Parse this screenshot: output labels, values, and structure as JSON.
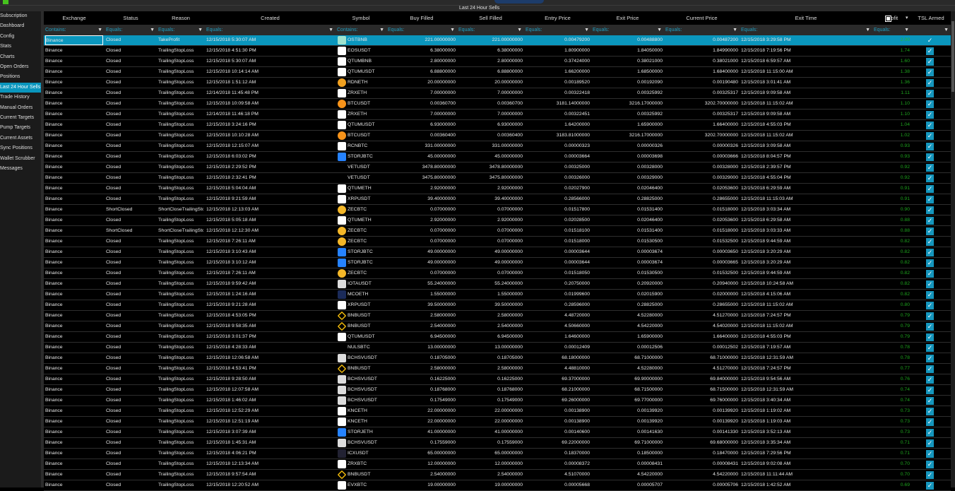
{
  "window": {
    "title": "Last 24 Hour Sells"
  },
  "sidebar": {
    "items": [
      "Subscription",
      "Dashboard",
      "Config",
      "Stats",
      "Charts",
      "Open Orders",
      "Positions",
      "Last 24 Hour Sells",
      "Trade History",
      "Manual Orders",
      "Current Targets",
      "Pump Targets",
      "Current Assets",
      "Sync Positions",
      "Wallet Scrubber",
      "Messages"
    ],
    "active": 7
  },
  "colors": {
    "accent": "#0a96bd",
    "profit": "#1ea51e",
    "checkbox": "#1596bd"
  },
  "columns": [
    "Exchange",
    "Status",
    "Reason",
    "Created",
    "Symbol",
    "Buy Filled",
    "Sell Filled",
    "Entry Price",
    "Exit Price",
    "Current Price",
    "Exit Time",
    "Profit",
    "TSL Armed"
  ],
  "filters": [
    "Contains:",
    "Equals:",
    "Equals:",
    "Equals:",
    "Contains:",
    "Equals:",
    "Equals:",
    "Equals:",
    "Equals:",
    "Equals:",
    "Equals:",
    "Equals:"
  ],
  "sort": {
    "column": "Profit",
    "direction": "descending"
  },
  "rows": [
    [
      "Binance",
      "Closed",
      "TakeProfit",
      "12/15/2018 5:30:07 AM",
      "OSTBNB",
      "221.00000000",
      "221.00000000",
      "0.00479200",
      "0.00488800",
      "0.00487200",
      "12/15/2018 3:29:58 PM",
      "2.00",
      true
    ],
    [
      "Binance",
      "Closed",
      "TrailingStopLoss",
      "12/15/2018 4:51:30 PM",
      "EOSUSDT",
      "6.38000000",
      "6.38000000",
      "1.80900000",
      "1.84050000",
      "1.84990000",
      "12/15/2018 7:19:56 PM",
      "1.74",
      true
    ],
    [
      "Binance",
      "Closed",
      "TrailingStopLoss",
      "12/15/2018 5:30:07 AM",
      "QTUMBNB",
      "2.80000000",
      "2.80000000",
      "0.37424000",
      "0.38021000",
      "0.38021000",
      "12/15/2018 6:59:57 AM",
      "1.60",
      true
    ],
    [
      "Binance",
      "Closed",
      "TrailingStopLoss",
      "12/15/2018 10:14:14 AM",
      "QTUMUSDT",
      "6.88800000",
      "6.88800000",
      "1.66200000",
      "1.68500000",
      "1.68400000",
      "12/15/2018 11:15:00 AM",
      "1.38",
      true
    ],
    [
      "Binance",
      "Closed",
      "TrailingStopLoss",
      "12/15/2018 1:51:12 AM",
      "RDNETH",
      "20.00000000",
      "20.00000000",
      "0.00189520",
      "0.00192090",
      "0.00190480",
      "12/15/2018 3:01:41 AM",
      "1.36",
      true
    ],
    [
      "Binance",
      "Closed",
      "TrailingStopLoss",
      "12/14/2018 11:45:48 PM",
      "ZRXETH",
      "7.00000000",
      "7.00000000",
      "0.00322418",
      "0.00325992",
      "0.00325317",
      "12/15/2018 9:09:58 AM",
      "1.11",
      true
    ],
    [
      "Binance",
      "Closed",
      "TrailingStopLoss",
      "12/15/2018 10:09:58 AM",
      "BTCUSDT",
      "0.00360700",
      "0.00360700",
      "3181.14000000",
      "3216.17000000",
      "3202.70000000",
      "12/15/2018 11:15:02 AM",
      "1.10",
      true
    ],
    [
      "Binance",
      "Closed",
      "TrailingStopLoss",
      "12/14/2018 11:46:18 PM",
      "ZRXETH",
      "7.00000000",
      "7.00000000",
      "0.00322451",
      "0.00325992",
      "0.00325317",
      "12/15/2018 9:09:58 AM",
      "1.10",
      true
    ],
    [
      "Binance",
      "Closed",
      "TrailingStopLoss",
      "12/15/2018 3:24:16 PM",
      "QTUMUSDT",
      "6.93000000",
      "6.93000000",
      "1.64200000",
      "1.65900000",
      "1.66400000",
      "12/15/2018 4:55:03 PM",
      "1.04",
      true
    ],
    [
      "Binance",
      "Closed",
      "TrailingStopLoss",
      "12/15/2018 10:10:28 AM",
      "BTCUSDT",
      "0.00360400",
      "0.00360400",
      "3183.81000000",
      "3216.17000000",
      "3202.70000000",
      "12/15/2018 11:15:02 AM",
      "1.02",
      true
    ],
    [
      "Binance",
      "Closed",
      "TrailingStopLoss",
      "12/15/2018 12:15:07 AM",
      "RCNBTC",
      "331.00000000",
      "331.00000000",
      "0.00000323",
      "0.00000326",
      "0.00000326",
      "12/15/2018 3:09:58 AM",
      "0.93",
      true
    ],
    [
      "Binance",
      "Closed",
      "TrailingStopLoss",
      "12/15/2018 6:03:02 PM",
      "STORJBTC",
      "45.00000000",
      "45.00000000",
      "0.00003664",
      "0.00003698",
      "0.00003666",
      "12/15/2018 8:04:57 PM",
      "0.93",
      true
    ],
    [
      "Binance",
      "Closed",
      "TrailingStopLoss",
      "12/15/2018 2:29:52 PM",
      "VETUSDT",
      "3478.80000000",
      "3478.80000000",
      "0.00325000",
      "0.00328000",
      "0.00328000",
      "12/15/2018 2:39:57 PM",
      "0.92",
      true
    ],
    [
      "Binance",
      "Closed",
      "TrailingStopLoss",
      "12/15/2018 2:32:41 PM",
      "VETUSDT",
      "3475.80000000",
      "3475.80000000",
      "0.00326000",
      "0.00329000",
      "0.00329000",
      "12/15/2018 4:55:04 PM",
      "0.92",
      true
    ],
    [
      "Binance",
      "Closed",
      "TrailingStopLoss",
      "12/15/2018 5:04:04 AM",
      "QTUMETH",
      "2.92000000",
      "2.92000000",
      "0.02027900",
      "0.02046400",
      "0.02053600",
      "12/15/2018 6:29:59 AM",
      "0.91",
      true
    ],
    [
      "Binance",
      "Closed",
      "TrailingStopLoss",
      "12/15/2018 9:21:59 AM",
      "XRPUSDT",
      "39.40000000",
      "39.40000000",
      "0.28566000",
      "0.28825000",
      "0.28655000",
      "12/15/2018 11:15:03 AM",
      "0.91",
      true
    ],
    [
      "Binance",
      "ShortClosed",
      "ShortCloseTrailingStop",
      "12/15/2018 12:13:03 AM",
      "ZECBTC",
      "0.07000000",
      "0.07000000",
      "0.01517800",
      "0.01531400",
      "0.01518000",
      "12/15/2018 3:03:34 AM",
      "0.90",
      true
    ],
    [
      "Binance",
      "Closed",
      "TrailingStopLoss",
      "12/15/2018 5:05:18 AM",
      "QTUMETH",
      "2.92000000",
      "2.92000000",
      "0.02028500",
      "0.02046400",
      "0.02053600",
      "12/15/2018 6:29:58 AM",
      "0.88",
      true
    ],
    [
      "Binance",
      "ShortClosed",
      "ShortCloseTrailingStop",
      "12/15/2018 12:12:30 AM",
      "ZECBTC",
      "0.07000000",
      "0.07000000",
      "0.01518100",
      "0.01531400",
      "0.01518000",
      "12/15/2018 3:03:33 AM",
      "0.88",
      true
    ],
    [
      "Binance",
      "Closed",
      "TrailingStopLoss",
      "12/15/2018 7:26:11 AM",
      "ZECBTC",
      "0.07000000",
      "0.07000000",
      "0.01518000",
      "0.01530500",
      "0.01532500",
      "12/15/2018 9:44:59 AM",
      "0.82",
      true
    ],
    [
      "Binance",
      "Closed",
      "TrailingStopLoss",
      "12/15/2018 3:10:43 AM",
      "STORJBTC",
      "49.00000000",
      "49.00000000",
      "0.00003644",
      "0.00003674",
      "0.00003650",
      "12/15/2018 3:20:29 AM",
      "0.82",
      true
    ],
    [
      "Binance",
      "Closed",
      "TrailingStopLoss",
      "12/15/2018 3:10:12 AM",
      "STORJBTC",
      "49.00000000",
      "49.00000000",
      "0.00003644",
      "0.00003674",
      "0.00003665",
      "12/15/2018 3:20:29 AM",
      "0.82",
      true
    ],
    [
      "Binance",
      "Closed",
      "TrailingStopLoss",
      "12/15/2018 7:26:11 AM",
      "ZECBTC",
      "0.07000000",
      "0.07000000",
      "0.01518050",
      "0.01530500",
      "0.01532500",
      "12/15/2018 9:44:59 AM",
      "0.82",
      true
    ],
    [
      "Binance",
      "Closed",
      "TrailingStopLoss",
      "12/15/2018 9:59:42 AM",
      "IOTAUSDT",
      "55.24000000",
      "55.24000000",
      "0.20750000",
      "0.20920000",
      "0.20940000",
      "12/15/2018 10:24:58 AM",
      "0.82",
      true
    ],
    [
      "Binance",
      "Closed",
      "TrailingStopLoss",
      "12/15/2018 1:24:16 AM",
      "MCOETH",
      "1.55000000",
      "1.55000000",
      "0.01999600",
      "0.02015900",
      "0.02000000",
      "12/15/2018 4:15:06 AM",
      "0.82",
      true
    ],
    [
      "Binance",
      "Closed",
      "TrailingStopLoss",
      "12/15/2018 9:21:28 AM",
      "XRPUSDT",
      "39.50000000",
      "39.50000000",
      "0.28596000",
      "0.28825000",
      "0.28655000",
      "12/15/2018 11:15:02 AM",
      "0.80",
      true
    ],
    [
      "Binance",
      "Closed",
      "TrailingStopLoss",
      "12/15/2018 4:53:05 PM",
      "BNBUSDT",
      "2.58000000",
      "2.58000000",
      "4.48720000",
      "4.52280000",
      "4.51270000",
      "12/15/2018 7:24:57 PM",
      "0.79",
      true
    ],
    [
      "Binance",
      "Closed",
      "TrailingStopLoss",
      "12/15/2018 9:58:35 AM",
      "BNBUSDT",
      "2.54000000",
      "2.54000000",
      "4.50660000",
      "4.54220000",
      "4.54020000",
      "12/15/2018 11:15:02 AM",
      "0.79",
      true
    ],
    [
      "Binance",
      "Closed",
      "TrailingStopLoss",
      "12/15/2018 3:01:37 PM",
      "QTUMUSDT",
      "6.94500000",
      "6.94500000",
      "1.64600000",
      "1.65900000",
      "1.66400000",
      "12/15/2018 4:55:03 PM",
      "0.79",
      true
    ],
    [
      "Binance",
      "Closed",
      "TrailingStopLoss",
      "12/15/2018 4:28:33 AM",
      "NULSBTC",
      "13.00000000",
      "13.00000000",
      "0.00012409",
      "0.00012506",
      "0.00012502",
      "12/15/2018 7:19:57 AM",
      "0.78",
      true
    ],
    [
      "Binance",
      "Closed",
      "TrailingStopLoss",
      "12/15/2018 12:06:58 AM",
      "BCHSVUSDT",
      "0.18705000",
      "0.18705000",
      "68.18000000",
      "68.71000000",
      "68.71000000",
      "12/15/2018 12:31:59 AM",
      "0.78",
      true
    ],
    [
      "Binance",
      "Closed",
      "TrailingStopLoss",
      "12/15/2018 4:53:41 PM",
      "BNBUSDT",
      "2.58000000",
      "2.58000000",
      "4.48810000",
      "4.52280000",
      "4.51270000",
      "12/15/2018 7:24:57 PM",
      "0.77",
      true
    ],
    [
      "Binance",
      "Closed",
      "TrailingStopLoss",
      "12/15/2018 9:28:50 AM",
      "BCHSVUSDT",
      "0.16225000",
      "0.16225000",
      "69.37000000",
      "69.90000000",
      "69.84000000",
      "12/15/2018 9:54:56 AM",
      "0.76",
      true
    ],
    [
      "Binance",
      "Closed",
      "TrailingStopLoss",
      "12/15/2018 12:07:58 AM",
      "BCHSVUSDT",
      "0.18768000",
      "0.18768000",
      "68.21000000",
      "68.71500000",
      "68.71500000",
      "12/15/2018 12:31:59 AM",
      "0.74",
      true
    ],
    [
      "Binance",
      "Closed",
      "TrailingStopLoss",
      "12/15/2018 1:46:02 AM",
      "BCHSVUSDT",
      "0.17549000",
      "0.17549000",
      "69.26000000",
      "69.77000000",
      "69.76000000",
      "12/15/2018 3:40:34 AM",
      "0.74",
      true
    ],
    [
      "Binance",
      "Closed",
      "TrailingStopLoss",
      "12/15/2018 12:52:29 AM",
      "KNCETH",
      "22.00000000",
      "22.00000000",
      "0.00138900",
      "0.00139920",
      "0.00139920",
      "12/15/2018 1:19:02 AM",
      "0.73",
      true
    ],
    [
      "Binance",
      "Closed",
      "TrailingStopLoss",
      "12/15/2018 12:51:19 AM",
      "KNCETH",
      "22.00000000",
      "22.00000000",
      "0.00138900",
      "0.00139920",
      "0.00139920",
      "12/15/2018 1:19:03 AM",
      "0.73",
      true
    ],
    [
      "Binance",
      "Closed",
      "TrailingStopLoss",
      "12/15/2018 3:07:39 AM",
      "STORJETH",
      "41.00000000",
      "41.00000000",
      "0.00140600",
      "0.00141630",
      "0.00141330",
      "12/15/2018 3:52:13 AM",
      "0.73",
      true
    ],
    [
      "Binance",
      "Closed",
      "TrailingStopLoss",
      "12/15/2018 1:45:31 AM",
      "BCHSVUSDT",
      "0.17559000",
      "0.17559000",
      "69.22000000",
      "69.71000000",
      "69.68000000",
      "12/15/2018 3:35:34 AM",
      "0.71",
      true
    ],
    [
      "Binance",
      "Closed",
      "TrailingStopLoss",
      "12/15/2018 4:06:21 PM",
      "ICXUSDT",
      "65.00000000",
      "65.00000000",
      "0.18370000",
      "0.18500000",
      "0.18470000",
      "12/15/2018 7:29:56 PM",
      "0.71",
      true
    ],
    [
      "Binance",
      "Closed",
      "TrailingStopLoss",
      "12/15/2018 12:13:34 AM",
      "ZRXBTC",
      "12.00000000",
      "12.00000000",
      "0.00008372",
      "0.00008431",
      "0.00008431",
      "12/15/2018 9:02:08 AM",
      "0.70",
      true
    ],
    [
      "Binance",
      "Closed",
      "TrailingStopLoss",
      "12/15/2018 9:57:54 AM",
      "BNBUSDT",
      "2.54000000",
      "2.54000000",
      "4.51070000",
      "4.54220000",
      "4.54220000",
      "12/15/2018 11:11:44 AM",
      "0.70",
      true
    ],
    [
      "Binance",
      "Closed",
      "TrailingStopLoss",
      "12/15/2018 12:20:52 AM",
      "EVXBTC",
      "19.00000000",
      "19.00000000",
      "0.00005668",
      "0.00005707",
      "0.00005706",
      "12/15/2018 1:42:52 AM",
      "0.69",
      true
    ]
  ]
}
